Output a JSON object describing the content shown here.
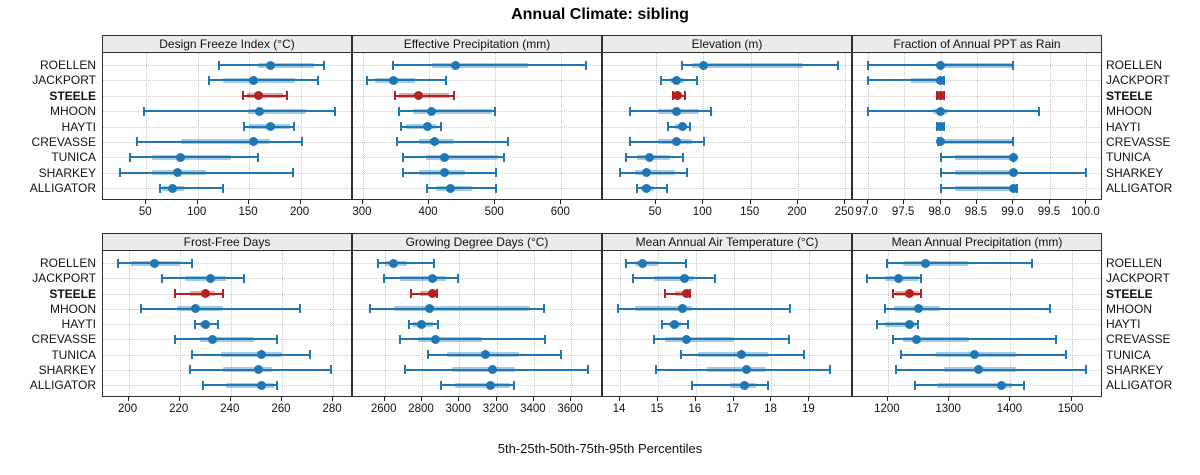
{
  "title": "Annual Climate: sibling",
  "caption": "5th-25th-50th-75th-95th Percentiles",
  "sites": [
    "ROELLEN",
    "JACKPORT",
    "STEELE",
    "MHOON",
    "HAYTI",
    "CREVASSE",
    "TUNICA",
    "SHARKEY",
    "ALLIGATOR"
  ],
  "highlight_site": "STEELE",
  "colors": {
    "series": "#1f77b4",
    "series_band": "rgba(31,119,180,0.40)",
    "highlight": "#b22222",
    "highlight_band": "rgba(178,34,34,0.40)",
    "strip_bg": "#ebebeb",
    "panel_border": "#2f2f2f",
    "grid": "#c8c8c8"
  },
  "chart_data": [
    {
      "type": "dotplot-percentiles",
      "title": "Design Freeze Index (°C)",
      "slug": "design-freeze-index",
      "percentiles": [
        "5th",
        "25th",
        "50th",
        "75th",
        "95th"
      ],
      "domain": [
        8,
        249
      ],
      "tick_values": [
        50,
        100,
        150,
        200
      ],
      "tick_labels": [
        "50",
        "100",
        "150",
        "200"
      ],
      "values": {
        "ROELLEN": [
          121,
          159,
          171,
          213,
          223
        ],
        "JACKPORT": [
          111,
          125,
          154,
          195,
          217
        ],
        "STEELE": [
          144,
          148,
          159,
          183,
          187
        ],
        "MHOON": [
          48,
          149,
          160,
          205,
          233
        ],
        "HAYTI": [
          145,
          150,
          171,
          190,
          194
        ],
        "CREVASSE": [
          41,
          84,
          154,
          170,
          201
        ],
        "TUNICA": [
          34,
          56,
          83,
          132,
          159
        ],
        "SHARKEY": [
          25,
          56,
          80,
          108,
          193
        ],
        "ALLIGATOR": [
          63,
          65,
          76,
          87,
          125
        ]
      }
    },
    {
      "type": "dotplot-percentiles",
      "title": "Effective Precipitation (mm)",
      "slug": "effective-precipitation",
      "percentiles": [
        "5th",
        "25th",
        "50th",
        "75th",
        "95th"
      ],
      "domain": [
        285,
        660
      ],
      "tick_values": [
        300,
        400,
        500,
        600
      ],
      "tick_labels": [
        "300",
        "400",
        "500",
        "600"
      ],
      "values": {
        "ROELLEN": [
          345,
          404,
          440,
          549,
          638
        ],
        "JACKPORT": [
          306,
          319,
          346,
          379,
          425
        ],
        "STEELE": [
          348,
          355,
          384,
          430,
          437
        ],
        "MHOON": [
          354,
          375,
          403,
          495,
          499
        ],
        "HAYTI": [
          358,
          365,
          397,
          410,
          418
        ],
        "CREVASSE": [
          351,
          385,
          408,
          437,
          520
        ],
        "TUNICA": [
          361,
          395,
          424,
          505,
          514
        ],
        "SHARKEY": [
          360,
          385,
          423,
          455,
          501
        ],
        "ALLIGATOR": [
          397,
          410,
          433,
          465,
          501
        ]
      }
    },
    {
      "type": "dotplot-percentiles",
      "title": "Elevation (m)",
      "slug": "elevation",
      "percentiles": [
        "5th",
        "25th",
        "50th",
        "75th",
        "95th"
      ],
      "domain": [
        -6,
        256
      ],
      "tick_values": [
        50,
        100,
        150,
        200,
        250
      ],
      "tick_labels": [
        "50",
        "100",
        "150",
        "200",
        "250"
      ],
      "values": {
        "ROELLEN": [
          77,
          88,
          100,
          205,
          242
        ],
        "JACKPORT": [
          55,
          65,
          72,
          80,
          93
        ],
        "STEELE": [
          68,
          70,
          73,
          77,
          81
        ],
        "MHOON": [
          22,
          52,
          72,
          95,
          108
        ],
        "HAYTI": [
          63,
          70,
          78,
          83,
          86
        ],
        "CREVASSE": [
          22,
          52,
          72,
          88,
          101
        ],
        "TUNICA": [
          18,
          30,
          43,
          65,
          78
        ],
        "SHARKEY": [
          12,
          28,
          40,
          70,
          83
        ],
        "ALLIGATOR": [
          30,
          34,
          40,
          48,
          62
        ]
      }
    },
    {
      "type": "dotplot-percentiles",
      "title": "Fraction of Annual PPT as Rain",
      "slug": "fraction-ppt-rain",
      "percentiles": [
        "5th",
        "25th",
        "50th",
        "75th",
        "95th"
      ],
      "domain": [
        96.8,
        100.2
      ],
      "tick_values": [
        97.0,
        97.5,
        98.0,
        98.5,
        99.0,
        99.5,
        100.0
      ],
      "tick_labels": [
        "97.0",
        "97.5",
        "98.0",
        "98.5",
        "99.0",
        "99.5",
        "100.0"
      ],
      "values": {
        "ROELLEN": [
          97.0,
          98.0,
          98.0,
          99.0,
          99.0
        ],
        "JACKPORT": [
          97.0,
          97.6,
          98.0,
          98.0,
          98.05
        ],
        "STEELE": [
          97.95,
          97.98,
          98.0,
          98.02,
          98.05
        ],
        "MHOON": [
          97.0,
          97.9,
          98.0,
          98.1,
          99.35
        ],
        "HAYTI": [
          97.95,
          97.98,
          98.0,
          98.02,
          98.05
        ],
        "CREVASSE": [
          97.97,
          98.0,
          98.0,
          99.0,
          99.0
        ],
        "TUNICA": [
          98.0,
          98.2,
          99.0,
          99.0,
          99.0
        ],
        "SHARKEY": [
          98.0,
          98.2,
          99.0,
          99.05,
          100.0
        ],
        "ALLIGATOR": [
          98.0,
          98.2,
          99.0,
          99.0,
          99.05
        ]
      }
    },
    {
      "type": "dotplot-percentiles",
      "title": "Frost-Free Days",
      "slug": "frost-free-days",
      "percentiles": [
        "5th",
        "25th",
        "50th",
        "75th",
        "95th"
      ],
      "domain": [
        190,
        287
      ],
      "tick_values": [
        200,
        220,
        240,
        260,
        280
      ],
      "tick_labels": [
        "200",
        "220",
        "240",
        "260",
        "280"
      ],
      "values": {
        "ROELLEN": [
          196,
          201,
          210,
          220,
          225
        ],
        "JACKPORT": [
          213,
          222,
          232,
          238,
          245
        ],
        "STEELE": [
          218,
          224,
          230,
          234,
          237
        ],
        "MHOON": [
          205,
          219,
          226,
          237,
          267
        ],
        "HAYTI": [
          226,
          228,
          230,
          232,
          235
        ],
        "CREVASSE": [
          218,
          228,
          233,
          249,
          258
        ],
        "TUNICA": [
          225,
          236,
          252,
          260,
          271
        ],
        "SHARKEY": [
          224,
          237,
          251,
          256,
          279
        ],
        "ALLIGATOR": [
          229,
          238,
          252,
          257,
          258
        ]
      }
    },
    {
      "type": "dotplot-percentiles",
      "title": "Growing Degree Days (°C)",
      "slug": "growing-degree-days",
      "percentiles": [
        "5th",
        "25th",
        "50th",
        "75th",
        "95th"
      ],
      "domain": [
        2430,
        3760
      ],
      "tick_values": [
        2600,
        2800,
        3000,
        3200,
        3400,
        3600
      ],
      "tick_labels": [
        "2600",
        "2800",
        "3000",
        "3200",
        "3400",
        "3600"
      ],
      "values": {
        "ROELLEN": [
          2564,
          2600,
          2648,
          2719,
          2867
        ],
        "JACKPORT": [
          2595,
          2680,
          2856,
          2930,
          2991
        ],
        "STEELE": [
          2742,
          2790,
          2858,
          2876,
          2880
        ],
        "MHOON": [
          2523,
          2650,
          2838,
          3380,
          3454
        ],
        "HAYTI": [
          2733,
          2750,
          2800,
          2860,
          2885
        ],
        "CREVASSE": [
          2684,
          2780,
          2870,
          3120,
          3461
        ],
        "TUNICA": [
          2831,
          2933,
          3141,
          3320,
          3543
        ],
        "SHARKEY": [
          2707,
          2960,
          3177,
          3300,
          3689
        ],
        "ALLIGATOR": [
          2902,
          2975,
          3170,
          3270,
          3294
        ]
      }
    },
    {
      "type": "dotplot-percentiles",
      "title": "Mean Annual Air Temperature (°C)",
      "slug": "mean-annual-air-temperature",
      "percentiles": [
        "5th",
        "25th",
        "50th",
        "75th",
        "95th"
      ],
      "domain": [
        13.55,
        20.1
      ],
      "tick_values": [
        14,
        15,
        16,
        17,
        18,
        19
      ],
      "tick_labels": [
        "14",
        "15",
        "16",
        "17",
        "18",
        "19"
      ],
      "values": {
        "ROELLEN": [
          14.15,
          14.4,
          14.6,
          15.0,
          15.75
        ],
        "JACKPORT": [
          14.35,
          14.9,
          15.7,
          15.95,
          16.5
        ],
        "STEELE": [
          15.2,
          15.45,
          15.75,
          15.8,
          15.85
        ],
        "MHOON": [
          13.95,
          14.4,
          15.65,
          15.9,
          18.5
        ],
        "HAYTI": [
          15.1,
          15.3,
          15.45,
          15.6,
          15.8
        ],
        "CREVASSE": [
          14.9,
          15.2,
          15.75,
          17.0,
          18.45
        ],
        "TUNICA": [
          15.6,
          16.05,
          17.2,
          17.9,
          18.85
        ],
        "SHARKEY": [
          14.95,
          16.3,
          17.35,
          17.85,
          19.55
        ],
        "ALLIGATOR": [
          15.9,
          16.9,
          17.3,
          17.6,
          17.9
        ]
      }
    },
    {
      "type": "dotplot-percentiles",
      "title": "Mean Annual Precipitation (mm)",
      "slug": "mean-annual-precipitation",
      "percentiles": [
        "5th",
        "25th",
        "50th",
        "75th",
        "95th"
      ],
      "domain": [
        1143,
        1548
      ],
      "tick_values": [
        1200,
        1300,
        1400,
        1500
      ],
      "tick_labels": [
        "1200",
        "1300",
        "1400",
        "1500"
      ],
      "values": {
        "ROELLEN": [
          1199,
          1224,
          1262,
          1330,
          1435
        ],
        "JACKPORT": [
          1166,
          1195,
          1217,
          1250,
          1254
        ],
        "STEELE": [
          1208,
          1212,
          1235,
          1250,
          1254
        ],
        "MHOON": [
          1196,
          1210,
          1250,
          1285,
          1464
        ],
        "HAYTI": [
          1182,
          1196,
          1236,
          1246,
          1249
        ],
        "CREVASSE": [
          1208,
          1225,
          1246,
          1333,
          1475
        ],
        "TUNICA": [
          1222,
          1279,
          1341,
          1409,
          1491
        ],
        "SHARKEY": [
          1214,
          1292,
          1348,
          1410,
          1524
        ],
        "ALLIGATOR": [
          1245,
          1280,
          1386,
          1402,
          1423
        ]
      }
    }
  ]
}
